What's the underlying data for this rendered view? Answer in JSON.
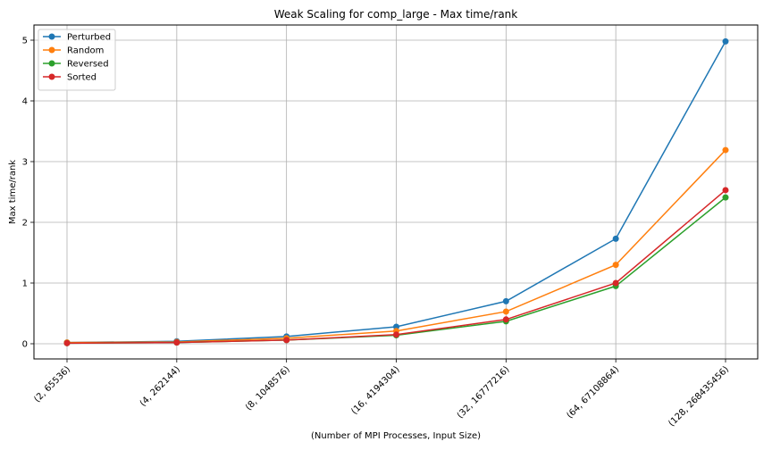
{
  "chart_data": {
    "type": "line",
    "title": "Weak Scaling for comp_large - Max time/rank",
    "xlabel": "(Number of MPI Processes, Input Size)",
    "ylabel": "Max time/rank",
    "categories": [
      "(2, 65536)",
      "(4, 262144)",
      "(8, 1048576)",
      "(16, 4194304)",
      "(32, 16777216)",
      "(64, 67108864)",
      "(128, 268435456)"
    ],
    "ylim": [
      -0.25,
      5.25
    ],
    "yticks": [
      0,
      1,
      2,
      3,
      4,
      5
    ],
    "grid": true,
    "legend_position": "top-left",
    "series": [
      {
        "name": "Perturbed",
        "color": "#1f77b4",
        "values": [
          0.02,
          0.04,
          0.12,
          0.28,
          0.7,
          1.73,
          4.98
        ]
      },
      {
        "name": "Random",
        "color": "#ff7f0e",
        "values": [
          0.02,
          0.03,
          0.09,
          0.21,
          0.53,
          1.3,
          3.19
        ]
      },
      {
        "name": "Reversed",
        "color": "#2ca02c",
        "values": [
          0.01,
          0.02,
          0.06,
          0.14,
          0.37,
          0.95,
          2.41
        ]
      },
      {
        "name": "Sorted",
        "color": "#d62728",
        "values": [
          0.01,
          0.02,
          0.06,
          0.15,
          0.4,
          1.0,
          2.53
        ]
      }
    ]
  }
}
